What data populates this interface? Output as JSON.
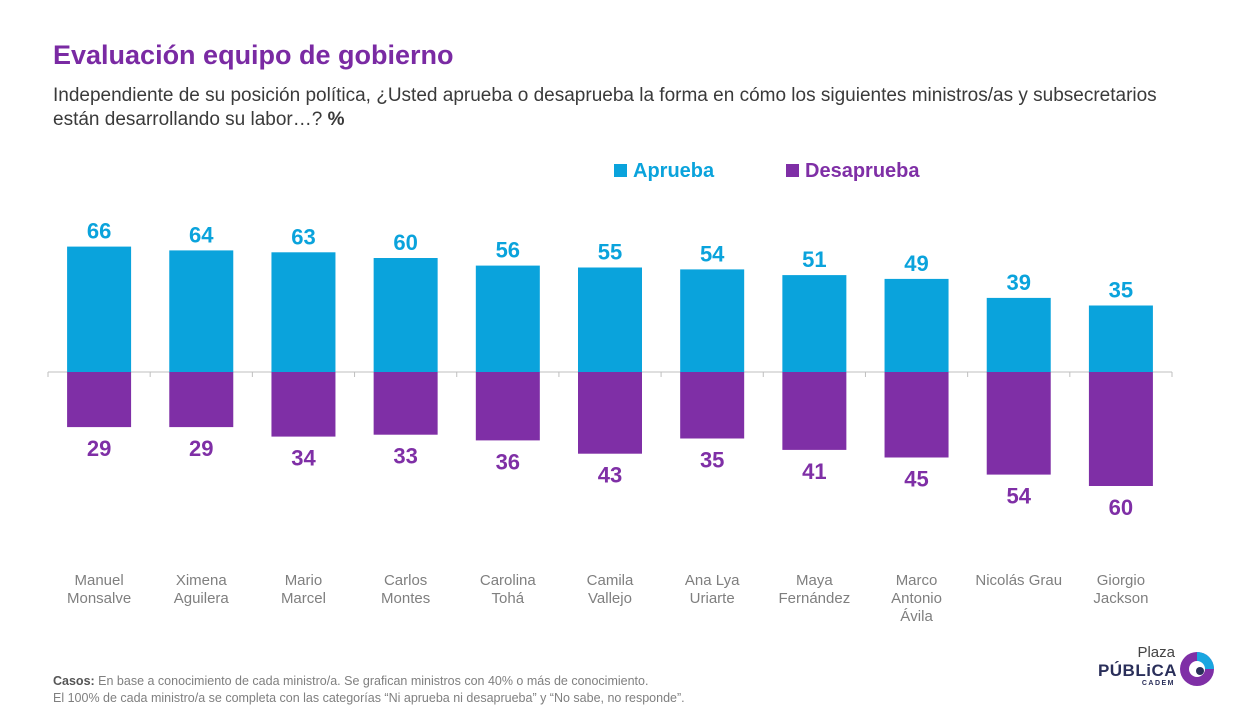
{
  "header": {
    "title": "Evaluación equipo de gobierno",
    "subtitle": "Independiente de su posición política, ¿Usted aprueba o desaprueba la forma en cómo los siguientes ministros/as y subsecretarios están desarrollando su labor…?",
    "subtitle_unit": "%"
  },
  "chart_data": {
    "type": "bar",
    "categories": [
      [
        "Manuel",
        "Monsalve"
      ],
      [
        "Ximena",
        "Aguilera"
      ],
      [
        "Mario",
        "Marcel"
      ],
      [
        "Carlos",
        "Montes"
      ],
      [
        "Carolina",
        "Tohá"
      ],
      [
        "Camila",
        "Vallejo"
      ],
      [
        "Ana Lya",
        "Uriarte"
      ],
      [
        "Maya",
        "Fernández"
      ],
      [
        "Marco",
        "Antonio",
        "Ávila"
      ],
      [
        "Nicolás Grau"
      ],
      [
        "Giorgio",
        "Jackson"
      ]
    ],
    "series": [
      {
        "name": "Aprueba",
        "color": "#0aa3dc",
        "direction": "up",
        "values": [
          66,
          64,
          63,
          60,
          56,
          55,
          54,
          51,
          49,
          39,
          35
        ]
      },
      {
        "name": "Desaprueba",
        "color": "#7f2fa6",
        "direction": "down",
        "values": [
          29,
          29,
          34,
          33,
          36,
          43,
          35,
          41,
          45,
          54,
          60
        ]
      }
    ],
    "legend_position": "top-center",
    "grid": false
  },
  "footer": {
    "line1_label": "Casos:",
    "line1_text": " En base a conocimiento de cada ministro/a. Se grafican ministros con 40% o más de conocimiento.",
    "line2_text": "El 100% de cada ministro/a se completa con las categorías “Ni aprueba ni desaprueba” y “No sabe, no responde”."
  },
  "logo": {
    "line1": "Plaza",
    "line2": "PÚBLiCA",
    "line3": "CADEM",
    "colors": [
      "#1aa6e0",
      "#7f2fa6",
      "#2a2f5a"
    ]
  }
}
